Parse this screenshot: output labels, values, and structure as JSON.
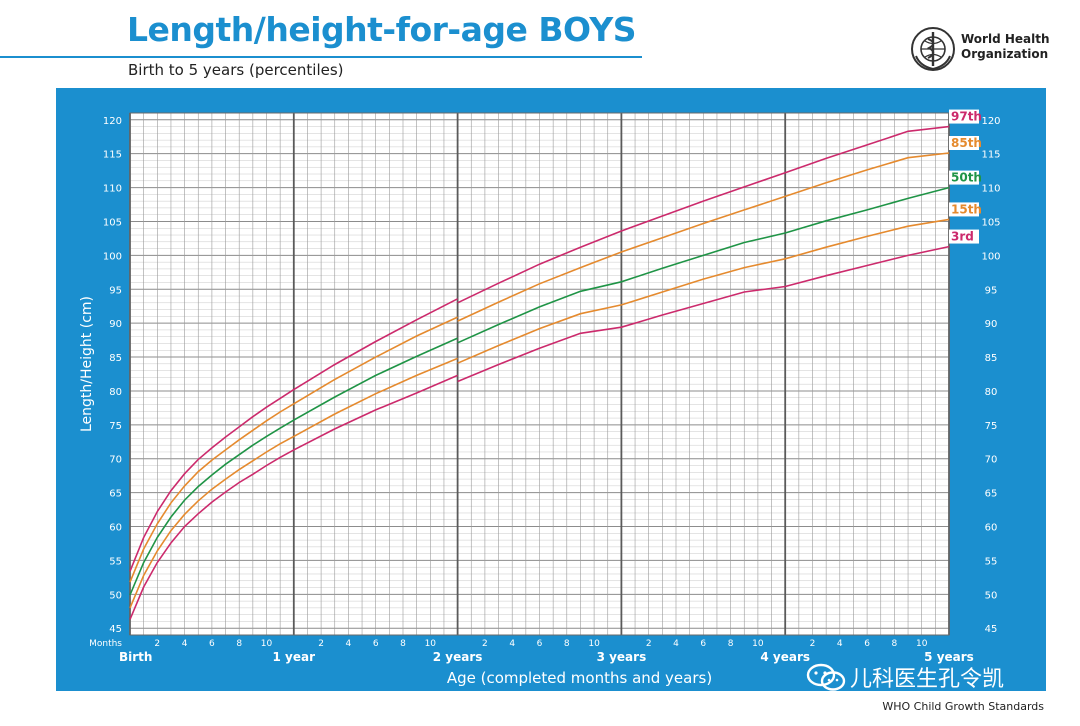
{
  "header": {
    "title": "Length/height-for-age BOYS",
    "subtitle": "Birth to 5 years (percentiles)",
    "organization": [
      "World Health",
      "Organization"
    ]
  },
  "footer": {
    "credit": "WHO Child Growth Standards",
    "watermark": "儿科医生孔令凯"
  },
  "colors": {
    "brand_blue": "#1b8fcf",
    "p3": "#cc2a6c",
    "p15": "#e58a2e",
    "p50": "#1f9446",
    "p85": "#e58a2e",
    "p97": "#cc2a6c"
  },
  "chart_data": {
    "type": "line",
    "title": "Length/height-for-age BOYS",
    "subtitle": "Birth to 5 years (percentiles)",
    "xlabel": "Age (completed months and years)",
    "ylabel": "Length/Height (cm)",
    "x_unit_label": "Months",
    "xlim": [
      0,
      60
    ],
    "ylim": [
      44,
      121
    ],
    "y_ticks": [
      45,
      50,
      55,
      60,
      65,
      70,
      75,
      80,
      85,
      90,
      95,
      100,
      105,
      110,
      115,
      120
    ],
    "month_ticks": [
      "2",
      "4",
      "6",
      "8",
      "10"
    ],
    "year_labels": [
      {
        "x": 0,
        "label": "Birth"
      },
      {
        "x": 12,
        "label": "1 year"
      },
      {
        "x": 24,
        "label": "2 years"
      },
      {
        "x": 36,
        "label": "3 years"
      },
      {
        "x": 48,
        "label": "4 years"
      },
      {
        "x": 60,
        "label": "5 years"
      }
    ],
    "grid": true,
    "x": [
      0,
      1,
      2,
      3,
      4,
      5,
      6,
      7,
      8,
      9,
      10,
      11,
      12,
      15,
      18,
      21,
      24,
      27,
      30,
      33,
      36,
      39,
      42,
      45,
      48,
      51,
      54,
      57,
      60
    ],
    "series": [
      {
        "name": "97th",
        "color_key": "p97",
        "values_0_24": [
          53.4,
          58.4,
          62.2,
          65.3,
          67.8,
          69.9,
          71.6,
          73.2,
          74.7,
          76.2,
          77.6,
          78.9,
          80.2,
          83.9,
          87.3,
          90.5,
          93.6
        ],
        "values_24_60": [
          93.0,
          95.9,
          98.7,
          101.2,
          103.6,
          105.8,
          108.0,
          110.1,
          112.2,
          114.3,
          116.3,
          118.3,
          119.0
        ]
      },
      {
        "name": "85th",
        "color_key": "p85",
        "values_0_24": [
          51.8,
          56.7,
          60.4,
          63.5,
          66.0,
          68.1,
          69.8,
          71.3,
          72.8,
          74.2,
          75.6,
          76.9,
          78.1,
          81.7,
          85.0,
          88.1,
          90.9
        ],
        "values_24_60": [
          90.3,
          93.1,
          95.8,
          98.2,
          100.5,
          102.6,
          104.7,
          106.7,
          108.7,
          110.7,
          112.6,
          114.4,
          115.1
        ]
      },
      {
        "name": "50th",
        "color_key": "p50",
        "values_0_24": [
          49.9,
          54.7,
          58.4,
          61.4,
          63.9,
          65.9,
          67.6,
          69.2,
          70.6,
          72.0,
          73.3,
          74.5,
          75.7,
          79.1,
          82.3,
          85.1,
          87.8
        ],
        "values_24_60": [
          87.1,
          89.8,
          92.4,
          94.7,
          96.1,
          98.1,
          100.0,
          101.9,
          103.3,
          105.1,
          106.7,
          108.4,
          110.0
        ]
      },
      {
        "name": "15th",
        "color_key": "p15",
        "values_0_24": [
          48.0,
          52.8,
          56.4,
          59.4,
          61.8,
          63.8,
          65.5,
          67.0,
          68.4,
          69.7,
          71.0,
          72.2,
          73.3,
          76.6,
          79.6,
          82.3,
          84.8
        ],
        "values_24_60": [
          84.1,
          86.7,
          89.2,
          91.4,
          92.7,
          94.6,
          96.5,
          98.2,
          99.5,
          101.2,
          102.8,
          104.3,
          105.3
        ]
      },
      {
        "name": "3rd",
        "color_key": "p3",
        "values_0_24": [
          46.3,
          51.1,
          54.7,
          57.6,
          60.0,
          61.9,
          63.6,
          65.1,
          66.5,
          67.7,
          69.0,
          70.2,
          71.3,
          74.4,
          77.2,
          79.7,
          82.3
        ],
        "values_24_60": [
          81.4,
          83.9,
          86.3,
          88.5,
          89.4,
          91.2,
          92.9,
          94.6,
          95.4,
          97.0,
          98.5,
          100.0,
          101.3
        ]
      }
    ]
  }
}
